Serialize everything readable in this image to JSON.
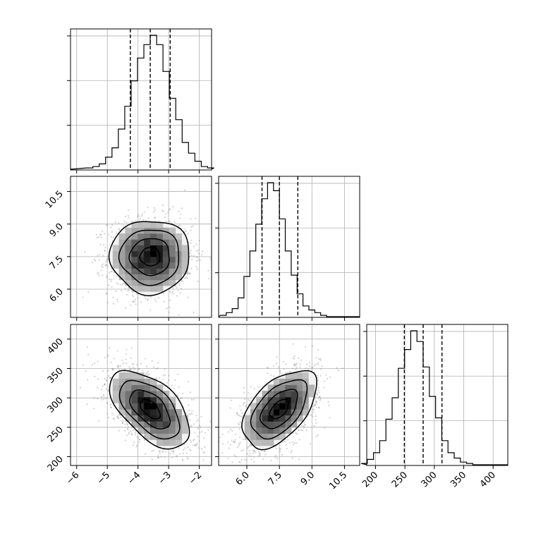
{
  "chart_data": {
    "type": "corner",
    "grid": true,
    "title": "",
    "parameters": [
      {
        "label": "",
        "range": [
          -6.2,
          -1.6
        ],
        "ticks": [
          -6,
          -5,
          -4,
          -3,
          -2
        ],
        "tick_labels": [
          "−6",
          "−5",
          "−4",
          "−3",
          "−2"
        ],
        "mean": -3.6,
        "std": 0.65,
        "quantiles": [
          -4.25,
          -3.6,
          -2.95
        ]
      },
      {
        "label": "",
        "range": [
          4.7,
          11.2
        ],
        "ticks": [
          6.0,
          7.5,
          9.0,
          10.5
        ],
        "tick_labels": [
          "6.0",
          "7.5",
          "9.0",
          "10.5"
        ],
        "mean": 7.5,
        "std": 0.85,
        "quantiles": [
          6.7,
          7.5,
          8.35
        ]
      },
      {
        "label": "",
        "range": [
          185,
          425
        ],
        "ticks": [
          200,
          250,
          300,
          350,
          400
        ],
        "tick_labels": [
          "200",
          "250",
          "300",
          "350",
          "400"
        ],
        "mean": 281,
        "std": 33,
        "quantiles": [
          249,
          281,
          313
        ]
      }
    ],
    "histograms": [
      {
        "param": 0,
        "bins": 20,
        "counts": [
          0.01,
          0.02,
          0.04,
          0.09,
          0.16,
          0.3,
          0.47,
          0.66,
          0.83,
          0.93,
          1.0,
          0.93,
          0.73,
          0.53,
          0.37,
          0.2,
          0.12,
          0.06,
          0.02,
          0.01
        ]
      },
      {
        "param": 1,
        "bins": 20,
        "counts": [
          0.01,
          0.03,
          0.06,
          0.14,
          0.3,
          0.49,
          0.69,
          0.88,
          1.0,
          0.94,
          0.73,
          0.49,
          0.31,
          0.17,
          0.08,
          0.05,
          0.03,
          0.01,
          0.0,
          0.0
        ]
      },
      {
        "param": 2,
        "bins": 20,
        "counts": [
          0.01,
          0.04,
          0.09,
          0.18,
          0.34,
          0.5,
          0.72,
          0.86,
          1.0,
          0.92,
          0.73,
          0.51,
          0.35,
          0.18,
          0.09,
          0.05,
          0.02,
          0.01,
          0.0,
          0.0
        ]
      }
    ],
    "joint": [
      {
        "x_param": 0,
        "y_param": 1,
        "correlation": 0.0
      },
      {
        "x_param": 0,
        "y_param": 2,
        "correlation": -0.55
      },
      {
        "x_param": 1,
        "y_param": 2,
        "correlation": 0.52
      }
    ],
    "contour_levels_sigma": [
      0.5,
      1.0,
      1.5,
      2.0
    ],
    "colors": {
      "hist": "#000000",
      "points": "#7f7f7f",
      "density": "#000000",
      "grid": "#b0b0b0"
    }
  }
}
